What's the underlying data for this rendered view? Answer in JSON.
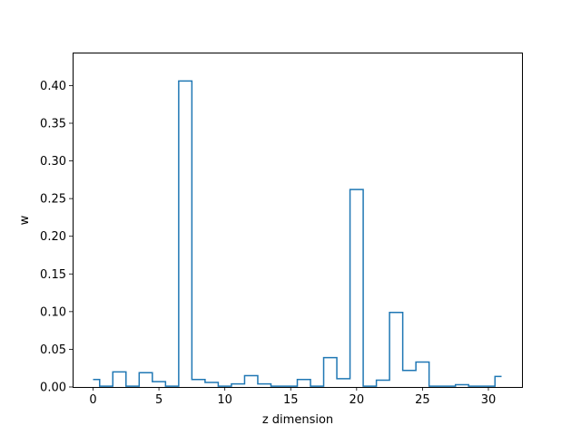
{
  "chart_data": {
    "type": "line",
    "style": "step-mid",
    "title": "",
    "xlabel": "z dimension",
    "ylabel": "w",
    "xlim": [
      -1.55,
      32.55
    ],
    "ylim": [
      0,
      0.4438
    ],
    "grid": false,
    "legend": "none",
    "x_ticks": [
      0,
      5,
      10,
      15,
      20,
      25,
      30
    ],
    "x_tick_labels": [
      "0",
      "5",
      "10",
      "15",
      "20",
      "25",
      "30"
    ],
    "y_ticks": [
      0.0,
      0.05,
      0.1,
      0.15,
      0.2,
      0.25,
      0.3,
      0.35,
      0.4
    ],
    "y_tick_labels": [
      "0.00",
      "0.05",
      "0.10",
      "0.15",
      "0.20",
      "0.25",
      "0.30",
      "0.35",
      "0.40"
    ],
    "series": [
      {
        "color": "#1f77b4",
        "x": [
          0,
          1,
          2,
          3,
          4,
          5,
          6,
          7,
          8,
          9,
          10,
          11,
          12,
          13,
          14,
          15,
          16,
          17,
          18,
          19,
          20,
          21,
          22,
          23,
          24,
          25,
          26,
          27,
          28,
          29,
          30,
          31
        ],
        "values": [
          0.01,
          0.001,
          0.02,
          0.001,
          0.019,
          0.007,
          0.001,
          0.406,
          0.01,
          0.006,
          0.001,
          0.004,
          0.015,
          0.004,
          0.001,
          0.001,
          0.01,
          0.001,
          0.039,
          0.011,
          0.262,
          0.001,
          0.009,
          0.099,
          0.022,
          0.033,
          0.001,
          0.001,
          0.003,
          0.001,
          0.001,
          0.014
        ]
      }
    ]
  }
}
